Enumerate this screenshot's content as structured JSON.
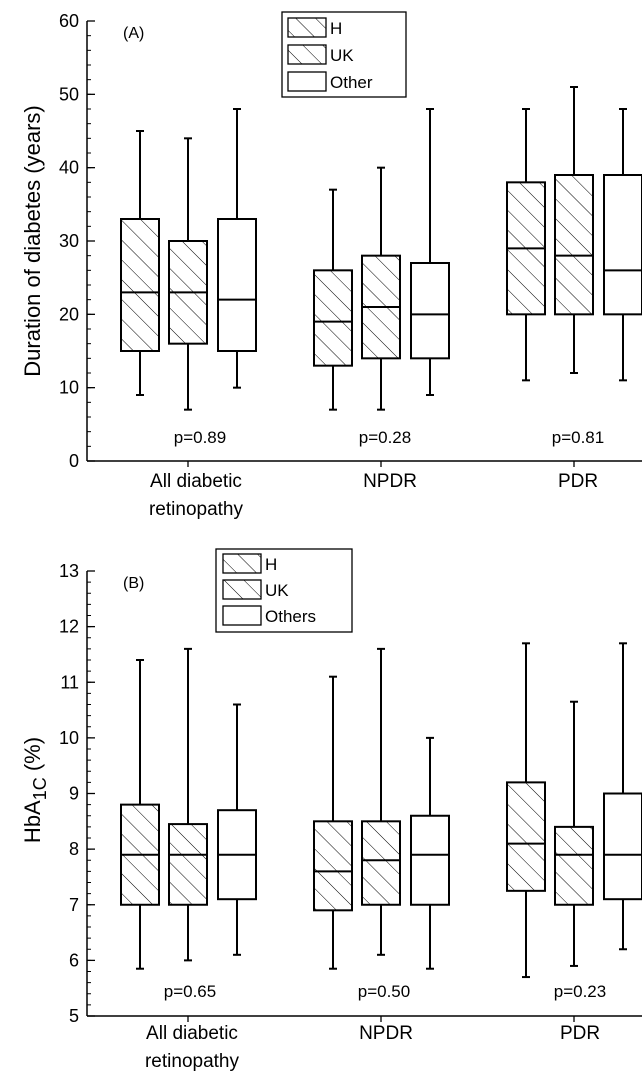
{
  "chart_data": [
    {
      "type": "boxplot",
      "panel_label": "(A)",
      "ylabel": "Duration of diabetes (years)",
      "ylim": [
        0,
        60
      ],
      "yticks": [
        0,
        10,
        20,
        30,
        40,
        50,
        60
      ],
      "categories": [
        [
          "All diabetic",
          "retinopathy"
        ],
        [
          "NPDR"
        ],
        [
          "PDR"
        ]
      ],
      "legend": {
        "position": "top-center",
        "entries": [
          "H",
          "UK",
          "Other"
        ]
      },
      "series": [
        {
          "name": "H",
          "pattern": "hatched",
          "boxes": [
            {
              "min": 9,
              "q1": 15,
              "median": 23,
              "q3": 33,
              "max": 45
            },
            {
              "min": 7,
              "q1": 13,
              "median": 19,
              "q3": 26,
              "max": 37
            },
            {
              "min": 11,
              "q1": 20,
              "median": 29,
              "q3": 38,
              "max": 48
            }
          ]
        },
        {
          "name": "UK",
          "pattern": "hatched",
          "boxes": [
            {
              "min": 7,
              "q1": 16,
              "median": 23,
              "q3": 30,
              "max": 44
            },
            {
              "min": 7,
              "q1": 14,
              "median": 21,
              "q3": 28,
              "max": 40
            },
            {
              "min": 12,
              "q1": 20,
              "median": 28,
              "q3": 39,
              "max": 51
            }
          ]
        },
        {
          "name": "Other",
          "pattern": "open",
          "boxes": [
            {
              "min": 10,
              "q1": 15,
              "median": 22,
              "q3": 33,
              "max": 48
            },
            {
              "min": 9,
              "q1": 14,
              "median": 20,
              "q3": 27,
              "max": 48
            },
            {
              "min": 11,
              "q1": 20,
              "median": 26,
              "q3": 39,
              "max": 48
            }
          ]
        }
      ],
      "annotations": [
        "p=0.89",
        "p=0.28",
        "p=0.81"
      ]
    },
    {
      "type": "boxplot",
      "panel_label": "(B)",
      "ylabel_main": "HbA",
      "ylabel_sub": "1C",
      "ylabel_unit": " (%)",
      "ylim": [
        5,
        13
      ],
      "yticks": [
        5,
        6,
        7,
        8,
        9,
        10,
        11,
        12,
        13
      ],
      "categories": [
        [
          "All diabetic",
          "retinopathy"
        ],
        [
          "NPDR"
        ],
        [
          "PDR"
        ]
      ],
      "legend": {
        "position": "top-center",
        "entries": [
          "H",
          "UK",
          "Others"
        ]
      },
      "series": [
        {
          "name": "H",
          "pattern": "hatched",
          "boxes": [
            {
              "min": 5.85,
              "q1": 7.0,
              "median": 7.9,
              "q3": 8.8,
              "max": 11.4
            },
            {
              "min": 5.85,
              "q1": 6.9,
              "median": 7.6,
              "q3": 8.5,
              "max": 11.1
            },
            {
              "min": 5.7,
              "q1": 7.25,
              "median": 8.1,
              "q3": 9.2,
              "max": 11.7
            }
          ]
        },
        {
          "name": "UK",
          "pattern": "hatched",
          "boxes": [
            {
              "min": 6.0,
              "q1": 7.0,
              "median": 7.9,
              "q3": 8.45,
              "max": 11.6
            },
            {
              "min": 6.1,
              "q1": 7.0,
              "median": 7.8,
              "q3": 8.5,
              "max": 11.6
            },
            {
              "min": 5.9,
              "q1": 7.0,
              "median": 7.9,
              "q3": 8.4,
              "max": 10.65
            }
          ]
        },
        {
          "name": "Others",
          "pattern": "open",
          "boxes": [
            {
              "min": 6.1,
              "q1": 7.1,
              "median": 7.9,
              "q3": 8.7,
              "max": 10.6
            },
            {
              "min": 5.85,
              "q1": 7.0,
              "median": 7.9,
              "q3": 8.6,
              "max": 10.0
            },
            {
              "min": 6.2,
              "q1": 7.1,
              "median": 7.9,
              "q3": 9.0,
              "max": 11.7
            }
          ]
        }
      ],
      "annotations": [
        "p=0.65",
        "p=0.50",
        "p=0.23"
      ]
    }
  ]
}
